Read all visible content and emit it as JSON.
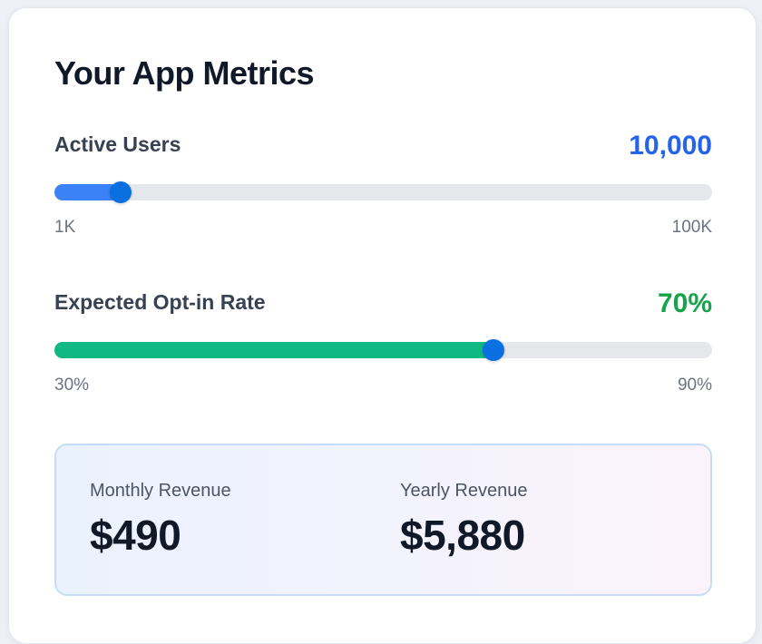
{
  "card": {
    "title": "Your App Metrics"
  },
  "metrics": {
    "active_users": {
      "label": "Active Users",
      "value": "10,000",
      "value_color": "#2563eb",
      "fill_color": "#3b82f6",
      "min_label": "1K",
      "max_label": "100K",
      "level": 0.1
    },
    "opt_in": {
      "label": "Expected Opt-in Rate",
      "value": "70%",
      "value_color": "#16a34a",
      "fill_color": "#10b981",
      "min_label": "30%",
      "max_label": "90%",
      "level": 0.667
    }
  },
  "revenue": {
    "monthly": {
      "label": "Monthly Revenue",
      "value": "$490"
    },
    "yearly": {
      "label": "Yearly Revenue",
      "value": "$5,880"
    }
  }
}
